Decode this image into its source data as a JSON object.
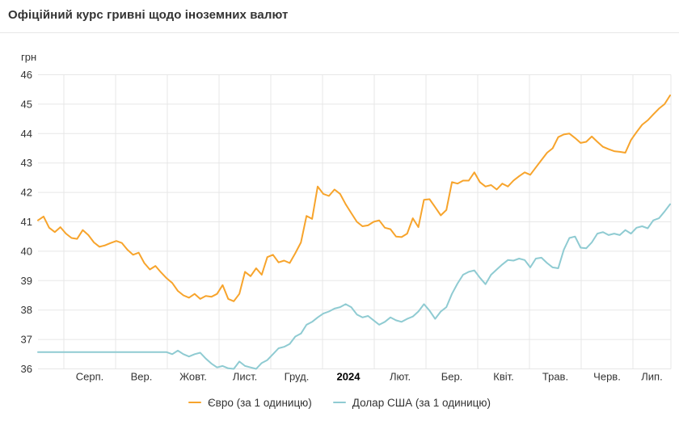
{
  "header": {
    "title": "Офіційний курс гривні щодо іноземних валют"
  },
  "colors": {
    "euro_line": "#f7a42c",
    "usd_line": "#8fcbd2",
    "grid": "#e7e7e7",
    "axis_text": "#333333",
    "bold_tick_text": "#000000",
    "title_text": "#333333",
    "divider": "#e8e8e8",
    "background": "#ffffff"
  },
  "chart_data": {
    "type": "line",
    "title": "Офіційний курс гривні щодо іноземних валют",
    "ylabel": "грн",
    "xlabel": "",
    "ylim": [
      36,
      46
    ],
    "grid": true,
    "legend_position": "bottom",
    "y_ticks": [
      36,
      37,
      38,
      39,
      40,
      41,
      42,
      43,
      44,
      45,
      46
    ],
    "x_tick_labels": [
      "Серп.",
      "Вер.",
      "Жовт.",
      "Лист.",
      "Груд.",
      "2024",
      "Лют.",
      "Бер.",
      "Квіт.",
      "Трав.",
      "Черв.",
      "Лип."
    ],
    "bold_tick_label": "2024",
    "series": [
      {
        "name": "Євро (за 1 одиницю)",
        "color": "#f7a42c",
        "values": [
          41.05,
          41.18,
          40.8,
          40.65,
          40.82,
          40.6,
          40.45,
          40.42,
          40.72,
          40.55,
          40.3,
          40.15,
          40.2,
          40.28,
          40.35,
          40.28,
          40.05,
          39.88,
          39.95,
          39.6,
          39.38,
          39.5,
          39.28,
          39.08,
          38.92,
          38.65,
          38.5,
          38.42,
          38.55,
          38.38,
          38.48,
          38.45,
          38.55,
          38.85,
          38.38,
          38.3,
          38.55,
          39.3,
          39.15,
          39.42,
          39.2,
          39.8,
          39.88,
          39.62,
          39.68,
          39.6,
          39.93,
          40.3,
          41.2,
          41.1,
          42.2,
          41.95,
          41.88,
          42.1,
          41.95,
          41.6,
          41.3,
          41.0,
          40.85,
          40.88,
          41.0,
          41.05,
          40.8,
          40.75,
          40.5,
          40.48,
          40.6,
          41.12,
          40.82,
          41.75,
          41.77,
          41.5,
          41.22,
          41.4,
          42.35,
          42.3,
          42.4,
          42.4,
          42.68,
          42.35,
          42.2,
          42.25,
          42.1,
          42.3,
          42.2,
          42.4,
          42.55,
          42.68,
          42.6,
          42.85,
          43.1,
          43.35,
          43.5,
          43.88,
          43.97,
          44.0,
          43.85,
          43.68,
          43.72,
          43.9,
          43.72,
          43.55,
          43.47,
          43.4,
          43.38,
          43.35,
          43.78,
          44.05,
          44.3,
          44.45,
          44.65,
          44.85,
          45.0,
          45.3
        ]
      },
      {
        "name": "Долар США (за 1 одиницю)",
        "color": "#8fcbd2",
        "values": [
          36.57,
          36.57,
          36.57,
          36.57,
          36.57,
          36.57,
          36.57,
          36.57,
          36.57,
          36.57,
          36.57,
          36.57,
          36.57,
          36.57,
          36.57,
          36.57,
          36.57,
          36.57,
          36.57,
          36.57,
          36.57,
          36.57,
          36.57,
          36.57,
          36.5,
          36.62,
          36.5,
          36.42,
          36.5,
          36.55,
          36.35,
          36.18,
          36.05,
          36.1,
          36.02,
          36.0,
          36.25,
          36.1,
          36.05,
          36.0,
          36.2,
          36.3,
          36.5,
          36.7,
          36.75,
          36.85,
          37.1,
          37.2,
          37.5,
          37.6,
          37.75,
          37.88,
          37.95,
          38.05,
          38.1,
          38.2,
          38.1,
          37.85,
          37.75,
          37.8,
          37.65,
          37.5,
          37.6,
          37.75,
          37.65,
          37.6,
          37.7,
          37.78,
          37.95,
          38.2,
          37.98,
          37.7,
          37.95,
          38.1,
          38.55,
          38.9,
          39.2,
          39.3,
          39.35,
          39.1,
          38.88,
          39.2,
          39.38,
          39.55,
          39.7,
          39.68,
          39.75,
          39.7,
          39.45,
          39.75,
          39.78,
          39.6,
          39.45,
          39.42,
          40.05,
          40.45,
          40.5,
          40.12,
          40.1,
          40.3,
          40.6,
          40.65,
          40.55,
          40.6,
          40.55,
          40.72,
          40.6,
          40.8,
          40.85,
          40.78,
          41.05,
          41.12,
          41.35,
          41.6
        ]
      }
    ]
  }
}
